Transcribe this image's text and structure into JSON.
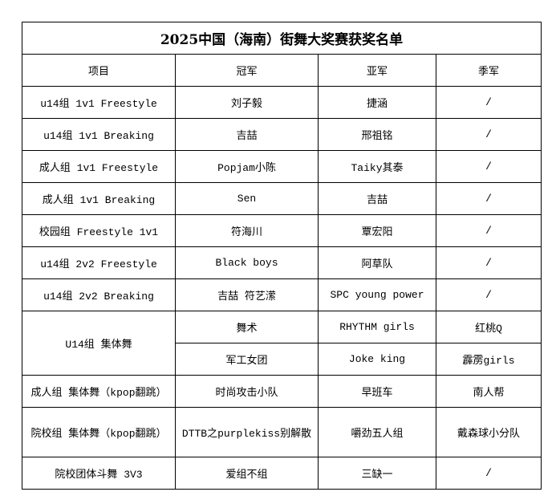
{
  "title": "2025中国（海南）街舞大奖赛获奖名单",
  "headers": [
    "项目",
    "冠军",
    "亚军",
    "季军"
  ],
  "rows": [
    [
      "u14组 1v1 Freestyle",
      "刘子毅",
      "捷涵",
      "/"
    ],
    [
      "u14组 1v1 Breaking",
      "吉喆",
      "邢祖铭",
      "/"
    ],
    [
      "成人组 1v1 Freestyle",
      "Popjam小陈",
      "Taiky其泰",
      "/"
    ],
    [
      "成人组 1v1 Breaking",
      "Sen",
      "吉喆",
      "/"
    ],
    [
      "校园组 Freestyle 1v1",
      "符海川",
      "覃宏阳",
      "/"
    ],
    [
      "u14组 2v2 Freestyle",
      "Black boys",
      "阿草队",
      "/"
    ],
    [
      "u14组 2v2 Breaking",
      "吉喆 符艺潆",
      "SPC young power",
      "/"
    ]
  ],
  "group_row": {
    "category": "U14组 集体舞",
    "entries": [
      [
        "舞术",
        "RHYTHM girls",
        "红桃Q"
      ],
      [
        "军工女团",
        "Joke king",
        "霹雳girls"
      ]
    ]
  },
  "rows2": [
    [
      "成人组 集体舞（kpop翻跳）",
      "时尚攻击小队",
      "早班车",
      "南人帮"
    ],
    [
      "院校组 集体舞（kpop翻跳）",
      "DTTB之purplekiss别解散",
      "嚼劲五人组",
      "戴森球小分队"
    ],
    [
      "院校团体斗舞 3V3",
      "爱组不组",
      "三缺一",
      "/"
    ]
  ]
}
